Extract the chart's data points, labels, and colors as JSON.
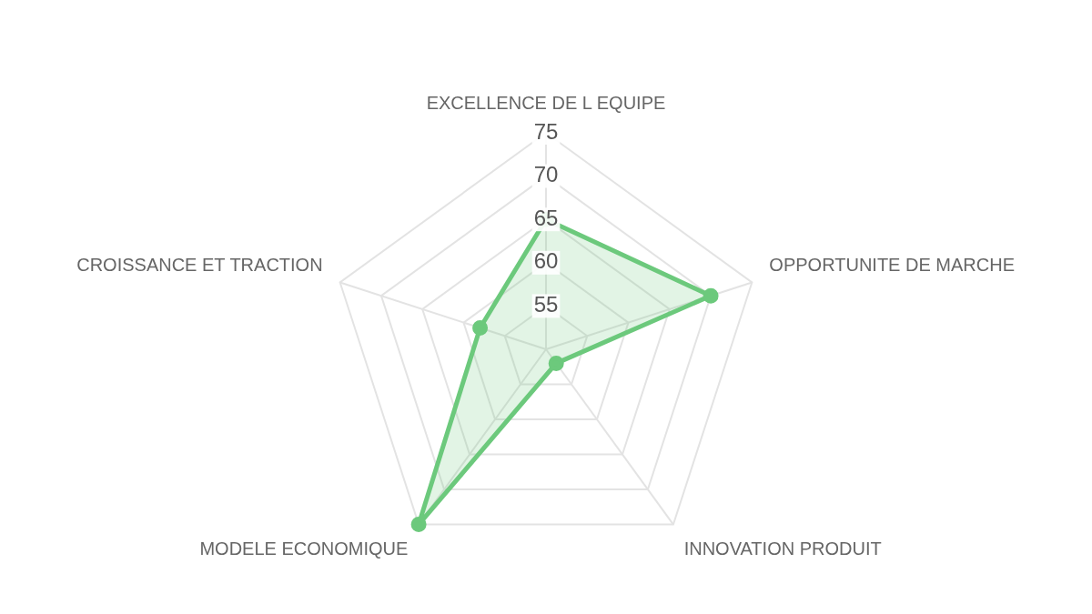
{
  "chart_data": {
    "type": "radar",
    "categories": [
      "EXCELLENCE DE L EQUIPE",
      "OPPORTUNITE DE MARCHE",
      "INNOVATION PRODUIT",
      "MODELE ECONOMIQUE",
      "CROISSANCE ET TRACTION"
    ],
    "series": [
      {
        "color": "#6cc97c",
        "values": [
          65,
          70,
          52,
          75,
          58
        ]
      }
    ],
    "ylim": [
      50,
      75
    ],
    "yticks": [
      55,
      60,
      65,
      70,
      75
    ],
    "grid": true,
    "marker": "circle",
    "legend": false
  }
}
